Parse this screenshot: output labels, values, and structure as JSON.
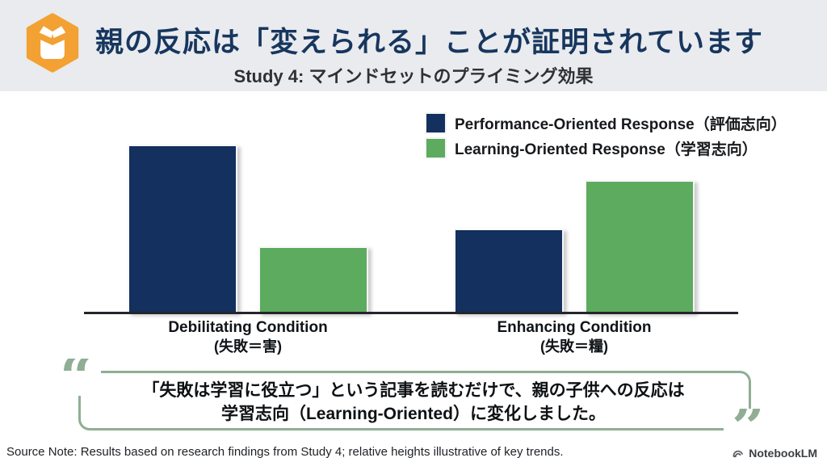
{
  "header": {
    "title": "親の反応は「変えられる」ことが証明されています",
    "subtitle": "Study 4: マインドセットのプライミング効果",
    "logo_color": "#F2A132"
  },
  "chart_data": {
    "type": "bar",
    "title": "",
    "xlabel": "",
    "ylabel": "",
    "ylim": [
      0,
      100
    ],
    "grid": false,
    "legend_position": "top-right",
    "value_note": "no y-axis shown; heights relative / illustrative",
    "categories": [
      {
        "label_en": "Debilitating Condition",
        "label_jp": "(失敗＝害)"
      },
      {
        "label_en": "Enhancing Condition",
        "label_jp": "(失敗＝糧)"
      }
    ],
    "series": [
      {
        "name": "Performance-Oriented Response（評価志向）",
        "color": "#13305E",
        "values": [
          90,
          45
        ]
      },
      {
        "name": "Learning-Oriented Response（学習志向）",
        "color": "#5DAB5E",
        "values": [
          35,
          71
        ]
      }
    ]
  },
  "quote": {
    "line1": "「失敗は学習に役立つ」という記事を読むだけで、親の子供への反応は",
    "line2": "学習志向（Learning-Oriented）に変化しました。",
    "open_mark": "“",
    "close_mark": "”",
    "accent_color": "#8FAE93"
  },
  "footer": {
    "source_note": "Source Note: Results based on research findings from Study 4; relative heights illustrative of key trends.",
    "brand": "NotebookLM"
  }
}
